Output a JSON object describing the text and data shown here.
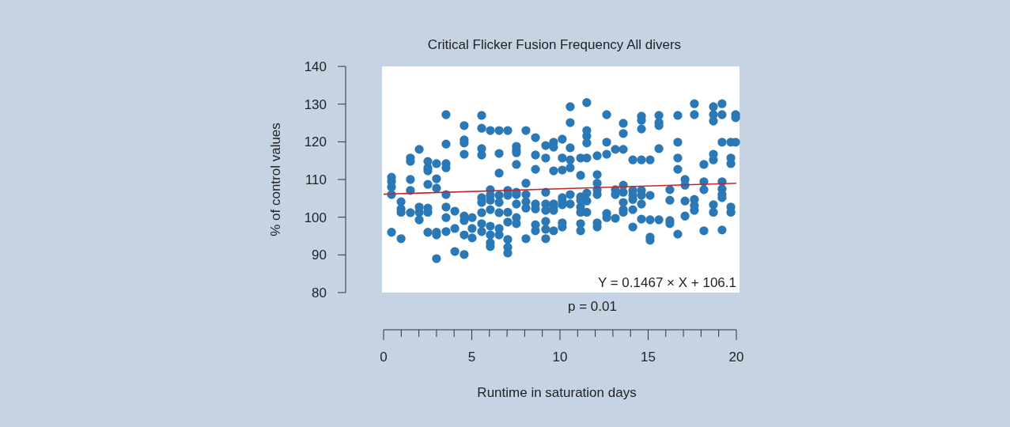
{
  "chart_data": {
    "type": "scatter",
    "title": "Critical Flicker Fusion Frequency All divers",
    "xlabel": "Runtime in saturation days",
    "ylabel": "% of control values",
    "xlim": [
      0,
      20
    ],
    "xticks": [
      0,
      5,
      10,
      15,
      20
    ],
    "ylim": [
      80,
      140
    ],
    "yticks": [
      80,
      90,
      100,
      110,
      120,
      130,
      140
    ],
    "grid": false,
    "annotations": [
      "Y = 0.1467 × X + 106.1",
      "p = 0.01"
    ],
    "series": [
      {
        "color": "#2a78b5",
        "marker": "circle",
        "x": [
          0.45,
          0.45,
          0.45,
          0.45,
          0.45,
          0.99,
          0.99,
          0.99,
          0.99,
          1.52,
          1.52,
          1.52,
          1.52,
          1.52,
          2.02,
          2.02,
          2.02,
          2.02,
          2.51,
          2.51,
          2.51,
          2.51,
          2.51,
          2.51,
          2.51,
          3.0,
          3.0,
          3.0,
          3.0,
          3.0,
          3.0,
          3.54,
          3.54,
          3.54,
          3.54,
          3.54,
          3.54,
          3.54,
          3.54,
          4.04,
          4.04,
          4.04,
          4.57,
          4.57,
          4.57,
          4.57,
          4.57,
          4.57,
          4.57,
          4.57,
          5.02,
          5.02,
          5.02,
          5.56,
          5.56,
          5.56,
          5.56,
          5.56,
          5.56,
          5.56,
          5.56,
          5.56,
          6.05,
          6.05,
          6.05,
          6.05,
          6.05,
          6.05,
          6.05,
          6.05,
          6.05,
          6.55,
          6.55,
          6.55,
          6.55,
          6.55,
          6.55,
          6.55,
          6.55,
          7.04,
          7.04,
          7.04,
          7.04,
          7.04,
          7.04,
          7.04,
          7.04,
          7.53,
          7.53,
          7.53,
          7.53,
          7.53,
          7.53,
          7.53,
          7.53,
          7.53,
          8.07,
          8.07,
          8.07,
          8.07,
          8.07,
          8.07,
          8.61,
          8.61,
          8.61,
          8.61,
          8.61,
          8.61,
          8.61,
          9.19,
          9.19,
          9.19,
          9.19,
          9.19,
          9.19,
          9.19,
          9.19,
          9.64,
          9.64,
          9.64,
          9.64,
          9.64,
          9.64,
          9.64,
          10.13,
          10.13,
          10.13,
          10.13,
          10.13,
          10.13,
          10.13,
          10.13,
          10.58,
          10.58,
          10.58,
          10.58,
          10.58,
          10.58,
          10.58,
          11.17,
          11.17,
          11.17,
          11.17,
          11.17,
          11.17,
          11.17,
          11.17,
          11.52,
          11.52,
          11.52,
          11.52,
          11.52,
          11.52,
          11.52,
          11.52,
          12.11,
          12.11,
          12.11,
          12.11,
          12.11,
          12.11,
          12.11,
          12.65,
          12.65,
          12.65,
          12.65,
          12.65,
          13.14,
          13.14,
          13.14,
          13.14,
          13.59,
          13.59,
          13.59,
          13.59,
          13.59,
          13.59,
          13.59,
          13.59,
          14.13,
          14.13,
          14.13,
          14.13,
          14.13,
          14.13,
          14.62,
          14.62,
          14.62,
          14.62,
          14.62,
          14.62,
          14.62,
          14.62,
          15.11,
          15.11,
          15.11,
          15.11,
          15.11,
          15.61,
          15.61,
          15.61,
          15.61,
          15.61,
          16.23,
          16.23,
          16.23,
          16.23,
          16.68,
          16.68,
          16.68,
          16.68,
          16.68,
          17.09,
          17.09,
          17.09,
          17.09,
          17.62,
          17.62,
          17.62,
          17.62,
          17.62,
          18.16,
          18.16,
          18.16,
          18.16,
          18.7,
          18.7,
          18.7,
          18.7,
          18.7,
          18.7,
          18.7,
          19.19,
          19.19,
          19.19,
          19.19,
          19.19,
          19.19,
          19.19,
          19.19,
          19.69,
          19.69,
          19.69,
          19.69,
          19.69,
          19.96,
          19.96,
          19.96
        ],
        "values": [
          110.6,
          109.5,
          108.0,
          106.0,
          96.0,
          104.1,
          102.2,
          101.3,
          94.3,
          115.7,
          114.8,
          110.0,
          107.1,
          101.2,
          118.0,
          102.7,
          101.3,
          99.3,
          114.8,
          113.1,
          112.3,
          108.7,
          102.4,
          101.3,
          96.0,
          114.2,
          110.2,
          107.7,
          96.0,
          95.3,
          89.0,
          127.2,
          119.4,
          114.2,
          113.1,
          106.0,
          102.7,
          99.9,
          96.2,
          101.6,
          97.0,
          90.9,
          124.3,
          120.5,
          119.7,
          116.7,
          100.3,
          99.1,
          95.3,
          90.1,
          99.9,
          97.0,
          94.5,
          127.0,
          123.6,
          118.2,
          116.5,
          105.2,
          103.9,
          101.2,
          98.3,
          96.2,
          123.0,
          107.3,
          105.8,
          104.5,
          102.0,
          97.6,
          95.3,
          93.2,
          92.2,
          123.0,
          116.9,
          111.7,
          105.8,
          103.9,
          101.2,
          97.0,
          95.3,
          123.0,
          107.1,
          105.8,
          101.3,
          98.7,
          94.1,
          92.0,
          90.5,
          118.8,
          117.8,
          117.1,
          114.0,
          106.6,
          106.0,
          103.5,
          99.9,
          98.3,
          123.0,
          109.0,
          106.0,
          104.1,
          102.4,
          94.3,
          121.1,
          116.5,
          112.7,
          103.5,
          102.2,
          98.0,
          96.4,
          119.0,
          115.7,
          106.6,
          103.5,
          101.8,
          98.9,
          96.8,
          94.3,
          119.9,
          118.6,
          112.3,
          103.5,
          102.7,
          101.8,
          96.4,
          120.7,
          115.7,
          112.5,
          105.2,
          104.3,
          103.3,
          98.5,
          97.4,
          129.3,
          125.1,
          118.4,
          115.2,
          113.1,
          106.0,
          103.5,
          115.7,
          111.1,
          105.4,
          104.5,
          102.7,
          101.3,
          98.3,
          96.4,
          130.4,
          123.0,
          121.5,
          119.7,
          115.7,
          106.4,
          104.3,
          101.3,
          116.3,
          111.3,
          109.0,
          107.3,
          106.0,
          98.5,
          97.4,
          127.2,
          119.9,
          116.7,
          101.0,
          99.9,
          118.0,
          107.3,
          106.0,
          99.7,
          124.9,
          122.2,
          118.0,
          108.5,
          106.6,
          103.9,
          102.0,
          101.3,
          115.2,
          107.1,
          105.8,
          104.7,
          102.0,
          97.4,
          126.8,
          125.7,
          123.4,
          115.2,
          107.1,
          105.8,
          103.5,
          99.5,
          115.2,
          105.8,
          99.3,
          94.7,
          93.9,
          127.0,
          125.1,
          124.3,
          118.2,
          99.3,
          107.3,
          104.5,
          99.1,
          98.3,
          127.0,
          119.9,
          115.7,
          112.7,
          95.5,
          110.0,
          108.5,
          104.3,
          100.3,
          130.1,
          127.2,
          104.7,
          103.1,
          101.8,
          114.0,
          109.4,
          107.3,
          96.4,
          129.3,
          127.2,
          125.5,
          116.7,
          115.2,
          103.3,
          101.3,
          130.1,
          127.2,
          119.9,
          109.4,
          107.5,
          106.0,
          105.2,
          96.6,
          119.9,
          115.7,
          114.2,
          102.7,
          101.3,
          127.2,
          126.4,
          119.9
        ]
      },
      {
        "type": "line",
        "color": "#c0282d",
        "x": [
          0,
          20
        ],
        "values": [
          106.1,
          109.0
        ]
      }
    ]
  }
}
